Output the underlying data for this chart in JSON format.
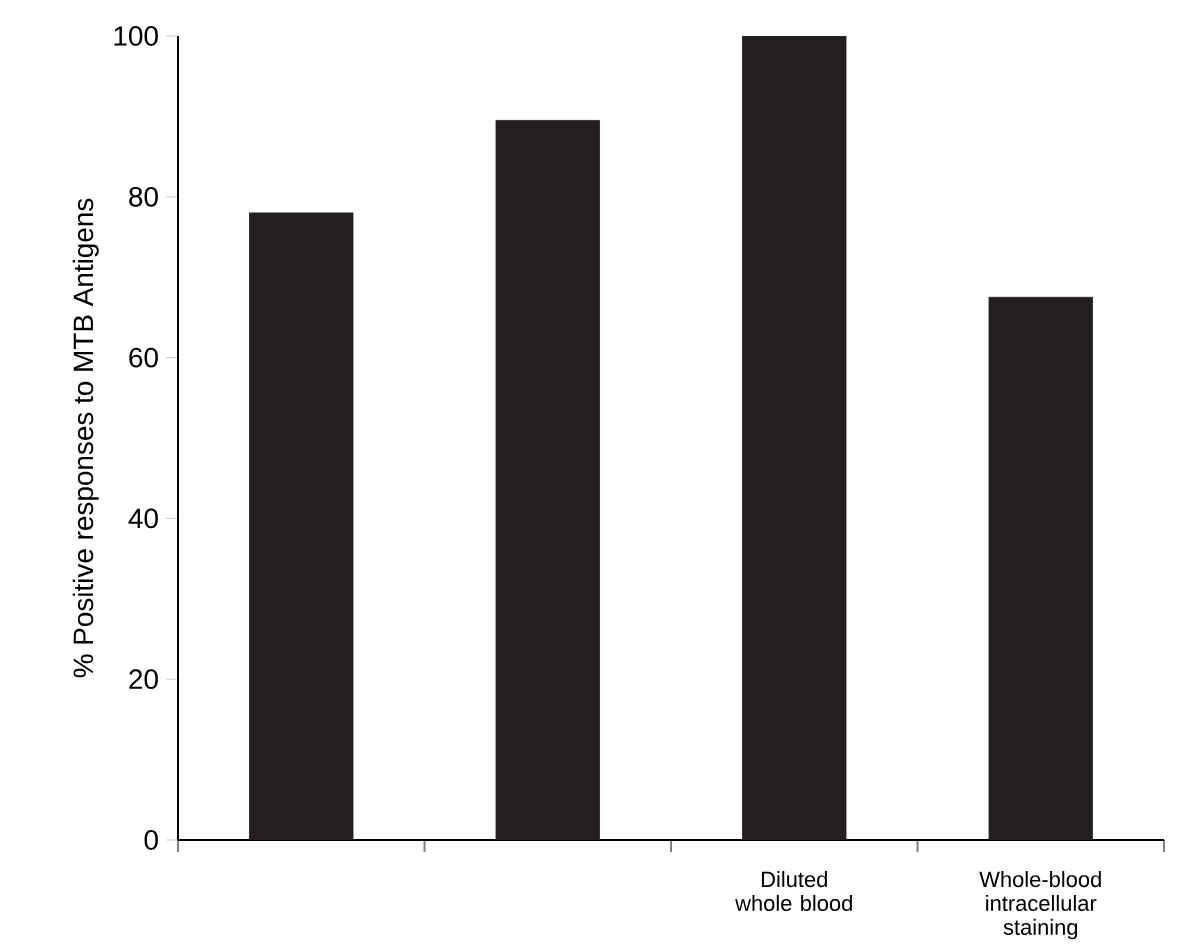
{
  "chart_data": {
    "type": "bar",
    "ylabel": "% Positive responses to MTB Antigens",
    "categories": [
      null,
      null,
      "Diluted whole blood",
      "Whole-blood intracellular staining"
    ],
    "values": [
      78,
      89.5,
      100,
      67.5
    ],
    "color": "#231f20",
    "ylim": [
      0,
      100
    ],
    "yticks": [
      0,
      20,
      40,
      60,
      80,
      100
    ],
    "grid": false
  }
}
